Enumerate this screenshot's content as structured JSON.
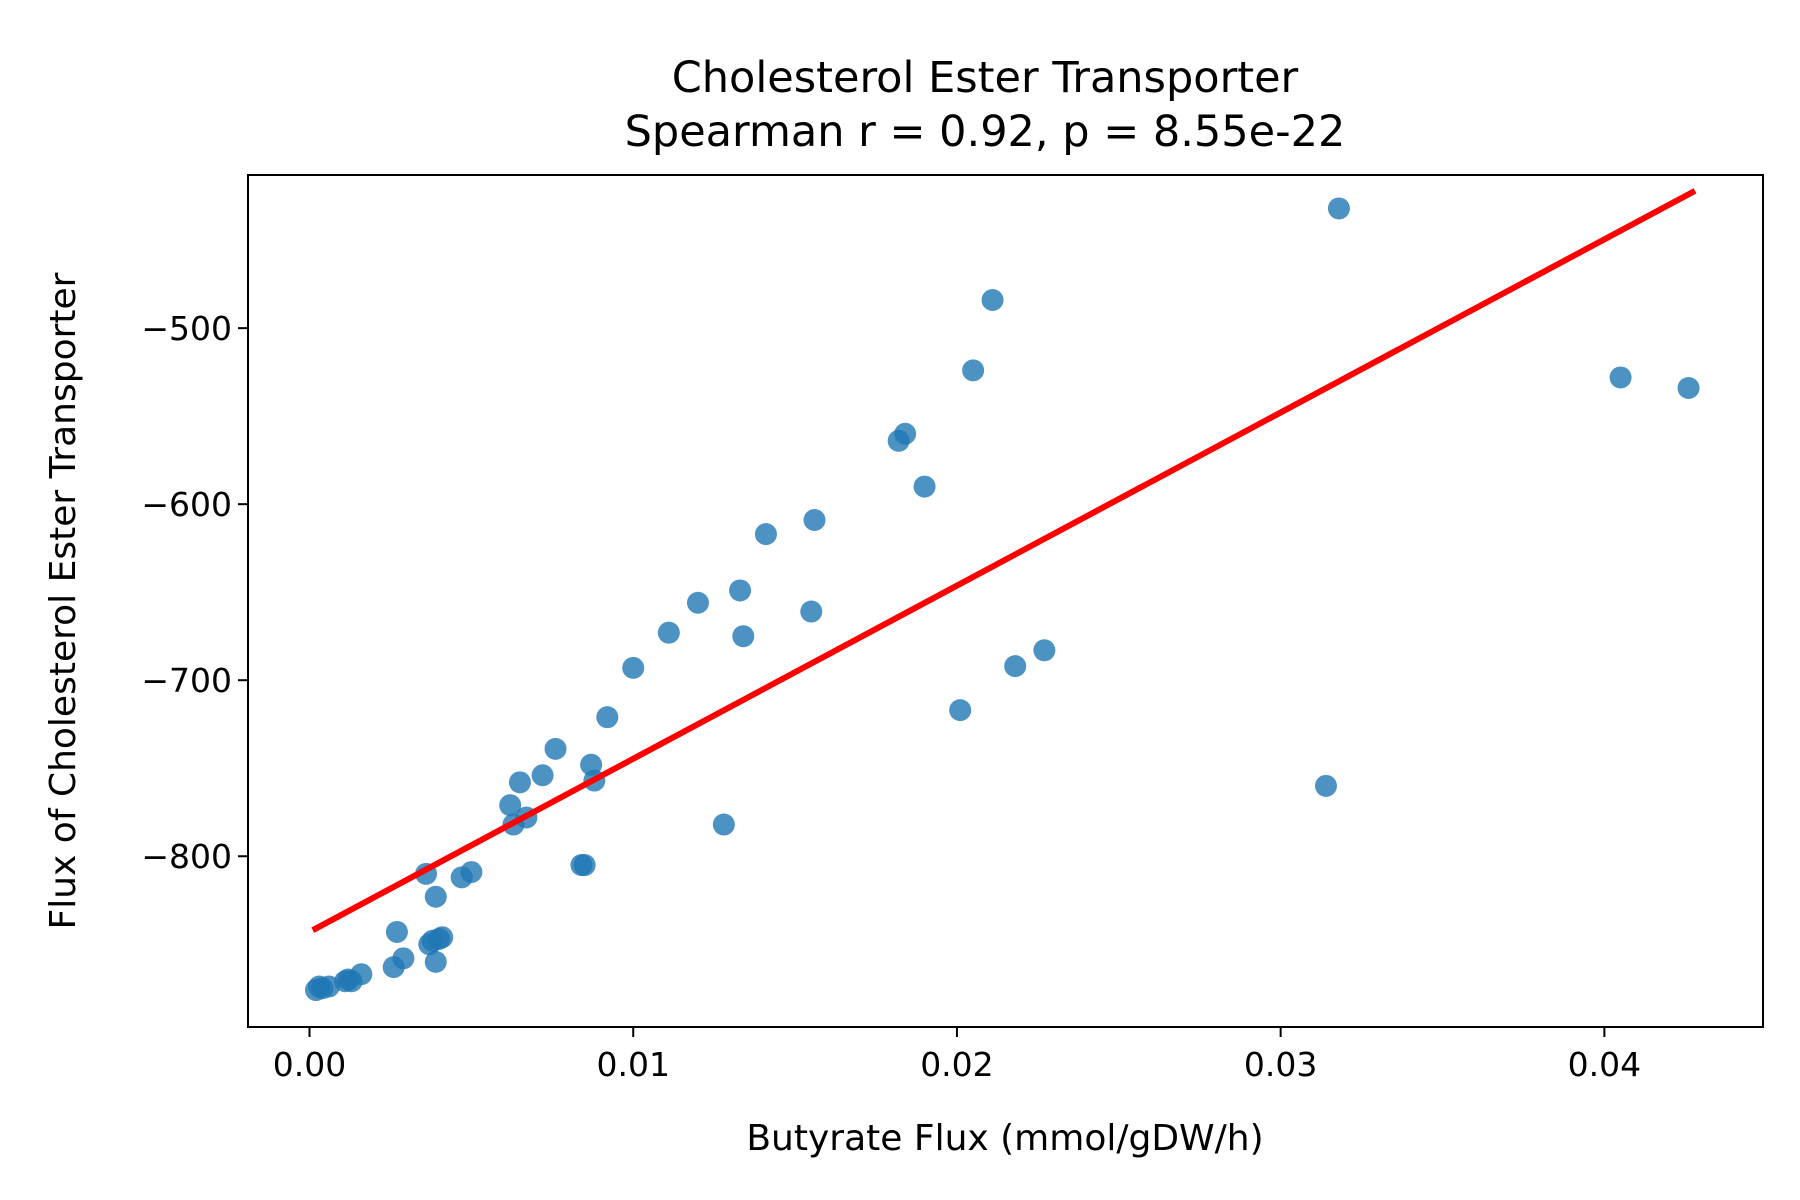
{
  "chart_data": {
    "type": "scatter",
    "title": "Cholesterol Ester Transporter",
    "subtitle": "Spearman r = 0.92, p = 8.55e-22",
    "xlabel": "Butyrate Flux (mmol/gDW/h)",
    "ylabel": "Flux of Cholesterol Ester Transporter",
    "xlim": [
      -0.0019,
      0.0449
    ],
    "ylim": [
      -897,
      -413
    ],
    "xticks": [
      0.0,
      0.01,
      0.02,
      0.03,
      0.04
    ],
    "xtick_labels": [
      "0.00",
      "0.01",
      "0.02",
      "0.03",
      "0.04"
    ],
    "yticks": [
      -800,
      -700,
      -600,
      -500
    ],
    "ytick_labels": [
      "−800",
      "−700",
      "−600",
      "−500"
    ],
    "grid": false,
    "colors": {
      "points": "#1f77b4",
      "fit": "#ff0000"
    },
    "series": [
      {
        "kind": "points",
        "x": [
          0.0002,
          0.0003,
          0.0004,
          0.0006,
          0.0011,
          0.0012,
          0.0013,
          0.0016,
          0.0026,
          0.0027,
          0.0029,
          0.0036,
          0.0037,
          0.0038,
          0.0039,
          0.0039,
          0.004,
          0.0041,
          0.0047,
          0.005,
          0.0062,
          0.0063,
          0.0065,
          0.0067,
          0.0072,
          0.0076,
          0.0084,
          0.0085,
          0.0087,
          0.0088,
          0.0092,
          0.01,
          0.0111,
          0.012,
          0.0128,
          0.0133,
          0.0134,
          0.0141,
          0.0155,
          0.0156,
          0.0182,
          0.0184,
          0.019,
          0.0201,
          0.0205,
          0.0211,
          0.0218,
          0.0227,
          0.0314,
          0.0318,
          0.0405,
          0.0426
        ],
        "y": [
          -876,
          -874,
          -875,
          -874,
          -871,
          -870,
          -871,
          -867,
          -863,
          -843,
          -858,
          -810,
          -850,
          -848,
          -823,
          -860,
          -847,
          -846,
          -812,
          -809,
          -771,
          -782,
          -758,
          -778,
          -754,
          -739,
          -805,
          -805,
          -748,
          -757,
          -721,
          -693,
          -673,
          -656,
          -782,
          -649,
          -675,
          -617,
          -661,
          -609,
          -564,
          -560,
          -590,
          -717,
          -524,
          -484,
          -692,
          -683,
          -760,
          -432,
          -528,
          -534
        ]
      },
      {
        "kind": "fit",
        "x": [
          0.0001,
          0.0428
        ],
        "y": [
          -842,
          -422
        ]
      }
    ]
  }
}
